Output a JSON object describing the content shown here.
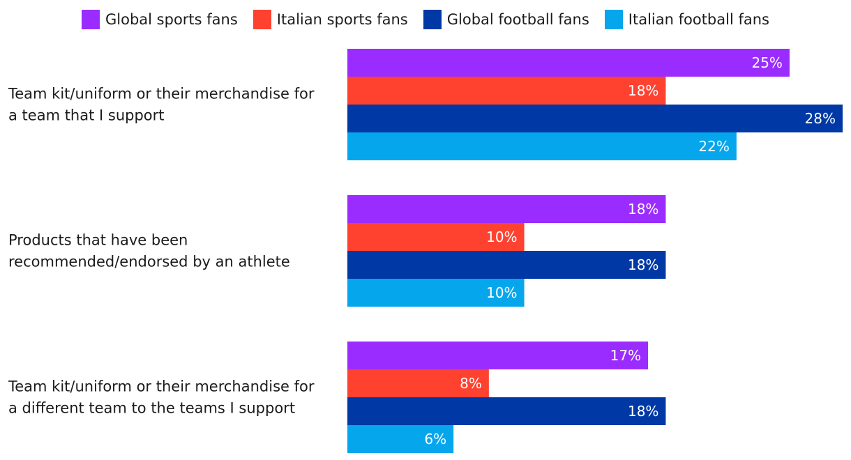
{
  "colors": {
    "Global sports fans": "#9b2cff",
    "Italian sports fans": "#ff4230",
    "Global football fans": "#0039a6",
    "Italian football fans": "#06a6ec"
  },
  "chart_data": {
    "type": "bar",
    "orientation": "horizontal",
    "legend_position": "top",
    "categories": [
      [
        "Team kit/uniform or their merchandise for",
        "a team that I support"
      ],
      [
        "Products that have been",
        "recommended/endorsed by an athlete"
      ],
      [
        "Team kit/uniform or their merchandise for",
        "a different team to the teams I support"
      ]
    ],
    "series": [
      {
        "name": "Global sports fans",
        "values": [
          25,
          18,
          17
        ]
      },
      {
        "name": "Italian sports fans",
        "values": [
          18,
          10,
          8
        ]
      },
      {
        "name": "Global football fans",
        "values": [
          28,
          18,
          18
        ]
      },
      {
        "name": "Italian football fans",
        "values": [
          22,
          10,
          6
        ]
      }
    ],
    "value_suffix": "%",
    "grid": false
  }
}
